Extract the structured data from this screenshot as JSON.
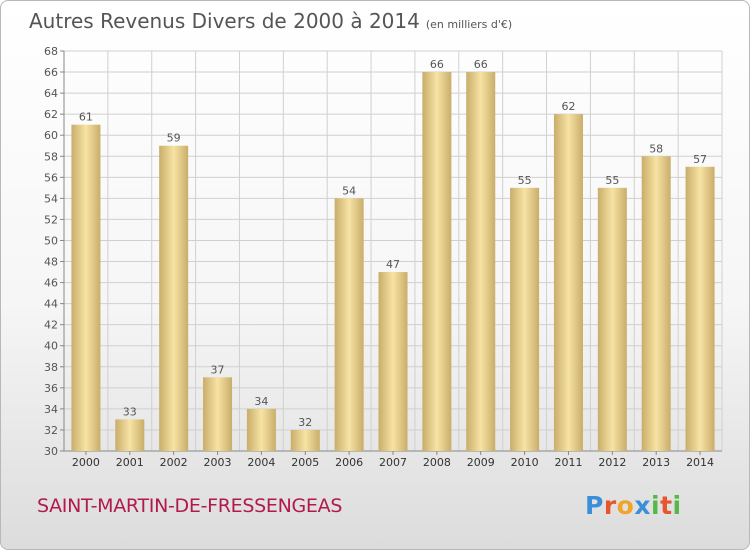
{
  "title": "Autres Revenus Divers de 2000 à 2014",
  "unit_note": "(en milliers d'€)",
  "commune": "SAINT-MARTIN-DE-FRESSENGEAS",
  "brand": {
    "letters": [
      "P",
      "r",
      "o",
      "x",
      "i",
      "t",
      "i"
    ]
  },
  "colors": {
    "bar_light": "#f7e3a4",
    "bar_dark": "#c9ad6a",
    "commune": "#b2194d",
    "axis": "#555555",
    "grid": "#d0d0d0",
    "brand": [
      "#3b8fd9",
      "#e6552b",
      "#f0a42a",
      "#3b8fd9",
      "#54b948",
      "#e6552b",
      "#54b948"
    ]
  },
  "chart_data": {
    "type": "bar",
    "categories": [
      "2000",
      "2001",
      "2002",
      "2003",
      "2004",
      "2005",
      "2006",
      "2007",
      "2008",
      "2009",
      "2010",
      "2011",
      "2012",
      "2013",
      "2014"
    ],
    "values": [
      61,
      33,
      59,
      37,
      34,
      32,
      54,
      47,
      66,
      66,
      55,
      62,
      55,
      58,
      57
    ],
    "ylim": [
      30,
      68
    ],
    "yticks": [
      30,
      32,
      34,
      36,
      38,
      40,
      42,
      44,
      46,
      48,
      50,
      52,
      54,
      56,
      58,
      60,
      62,
      64,
      66,
      68
    ],
    "grid": true,
    "xlabel": "",
    "ylabel": ""
  }
}
